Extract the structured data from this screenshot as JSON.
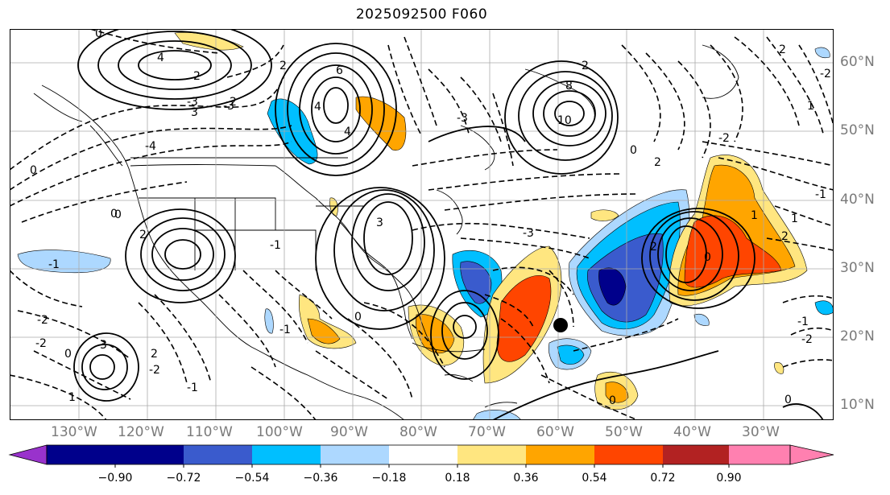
{
  "title": "2025092500 F060",
  "longitude_labels": [
    "130°W",
    "120°W",
    "110°W",
    "100°W",
    "90°W",
    "80°W",
    "70°W",
    "60°W",
    "50°W",
    "40°W",
    "30°W"
  ],
  "latitude_labels": [
    "60°N",
    "50°N",
    "40°N",
    "30°N",
    "20°N",
    "10°N"
  ],
  "colorbar": {
    "ticks": [
      "−0.90",
      "−0.72",
      "−0.54",
      "−0.36",
      "−0.18",
      "0.18",
      "0.36",
      "0.54",
      "0.72",
      "0.90"
    ],
    "colors": [
      "#9932cc",
      "#00008b",
      "#3a5bcd",
      "#00bfff",
      "#add8ff",
      "#ffffff",
      "#ffe680",
      "#ffa500",
      "#ff4500",
      "#b22222",
      "#ff80b0"
    ]
  },
  "contour_labels": [
    "0",
    "4",
    "2",
    "-2",
    "3",
    "-3",
    "4",
    "6",
    "4",
    "2",
    "-4",
    "8",
    "10",
    "2",
    "-3",
    "0",
    "2",
    "-2",
    "0",
    "-1",
    "3",
    "-2",
    "0",
    "2",
    "-3",
    "-1",
    "1",
    "-2",
    "2",
    "-1",
    "0",
    "-2",
    "3",
    "2",
    "1",
    "-1",
    "0",
    "-3",
    "0",
    "1",
    "0",
    "-1",
    "2",
    "0",
    "-2",
    "0",
    "-1",
    "-2",
    "2",
    "1"
  ],
  "marker": "storm-center-dot"
}
